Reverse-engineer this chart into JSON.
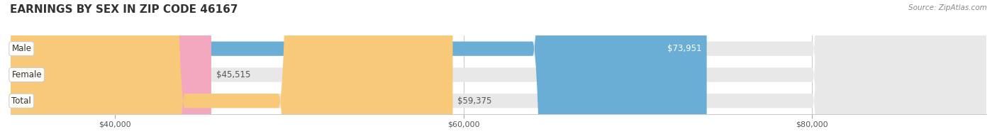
{
  "title": "EARNINGS BY SEX IN ZIP CODE 46167",
  "categories": [
    "Male",
    "Female",
    "Total"
  ],
  "values": [
    73951,
    45515,
    59375
  ],
  "bar_colors": [
    "#6aaed6",
    "#f4a8c0",
    "#f9c97a"
  ],
  "bar_bg_color": "#e8e8e8",
  "label_colors": [
    "#ffffff",
    "#555555",
    "#555555"
  ],
  "value_labels": [
    "$73,951",
    "$45,515",
    "$59,375"
  ],
  "x_ticks": [
    40000,
    60000,
    80000
  ],
  "x_tick_labels": [
    "$40,000",
    "$60,000",
    "$80,000"
  ],
  "xmin": 34000,
  "xmax": 90000,
  "source_text": "Source: ZipAtlas.com",
  "title_fontsize": 11,
  "bar_height": 0.55,
  "figsize": [
    14.06,
    1.96
  ],
  "dpi": 100
}
